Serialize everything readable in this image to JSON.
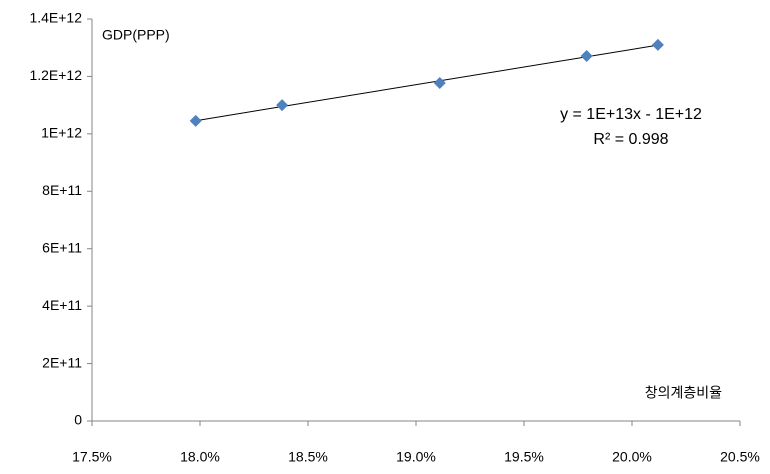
{
  "chart_data": {
    "type": "scatter",
    "x_label": "창의계층비율",
    "y_label": "GDP(PPP)",
    "series": [
      {
        "name": null,
        "color": "#4f81bd",
        "x": [
          17.98,
          18.38,
          19.11,
          19.79,
          20.12
        ],
        "values": [
          1045000000000.0,
          1100000000000.0,
          1177000000000.0,
          1271000000000.0,
          1310000000000.0
        ]
      }
    ],
    "trendline": {
      "equation": "y = 1E+13x - 1E+12",
      "r_squared": "R² = 0.998",
      "color": "#000000"
    },
    "xlim": [
      17.5,
      20.5
    ],
    "xticks": [
      {
        "value": 17.5,
        "label": "17.5%"
      },
      {
        "value": 18.0,
        "label": "18.0%"
      },
      {
        "value": 18.5,
        "label": "18.5%"
      },
      {
        "value": 19.0,
        "label": "19.0%"
      },
      {
        "value": 19.5,
        "label": "19.5%"
      },
      {
        "value": 20.0,
        "label": "20.0%"
      },
      {
        "value": 20.5,
        "label": "20.5%"
      }
    ],
    "ylim": [
      0,
      1400000000000.0
    ],
    "yticks": [
      0,
      {
        "value": 200000000000.0,
        "label": "2E+11"
      },
      {
        "value": 400000000000.0,
        "label": "4E+11"
      },
      {
        "value": 600000000000.0,
        "label": "6E+11"
      },
      {
        "value": 800000000000.0,
        "label": "8E+11"
      },
      {
        "value": 1000000000000.0,
        "label": "1E+12"
      },
      {
        "value": 1200000000000.0,
        "label": "1.2E+12"
      },
      {
        "value": 1400000000000.0,
        "label": "1.4E+12"
      }
    ],
    "grid": false
  }
}
